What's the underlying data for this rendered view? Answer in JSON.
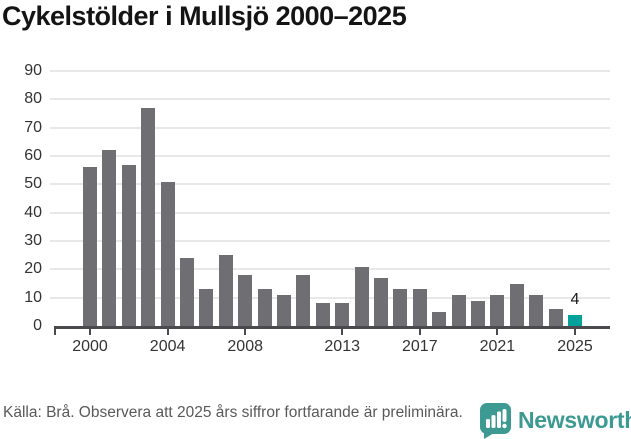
{
  "title": "Cykelstölder i Mullsjö 2000–2025",
  "chart_data": {
    "type": "bar",
    "title": "Cykelstölder i Mullsjö 2000–2025",
    "x": [
      2000,
      2001,
      2002,
      2003,
      2004,
      2005,
      2006,
      2007,
      2008,
      2009,
      2010,
      2011,
      2012,
      2013,
      2014,
      2015,
      2016,
      2017,
      2018,
      2019,
      2020,
      2021,
      2022,
      2023,
      2024,
      2025
    ],
    "values": [
      56,
      62,
      57,
      77,
      51,
      24,
      13,
      25,
      18,
      13,
      11,
      18,
      8,
      8,
      21,
      17,
      13,
      13,
      5,
      11,
      9,
      11,
      15,
      11,
      6,
      4
    ],
    "ylim": [
      0,
      90
    ],
    "y_ticks": [
      0,
      10,
      20,
      30,
      40,
      50,
      60,
      70,
      80,
      90
    ],
    "x_tick_years": [
      2000,
      2004,
      2008,
      2013,
      2017,
      2021,
      2025
    ],
    "x_tick_labels": [
      "2000",
      "2004",
      "2008",
      "2013",
      "2017",
      "2021",
      "2025"
    ],
    "grid": true,
    "legend": "none",
    "bar_color": "#6e6e73",
    "highlight": {
      "year": 2025,
      "value": 4,
      "label": "4",
      "color": "#00a19a"
    }
  },
  "footer": {
    "source_text": "Källa: Brå. Observera att 2025 års siffror fortfarande är preliminära.",
    "brand": "Newsworthy",
    "brand_color": "#3c9a93"
  }
}
